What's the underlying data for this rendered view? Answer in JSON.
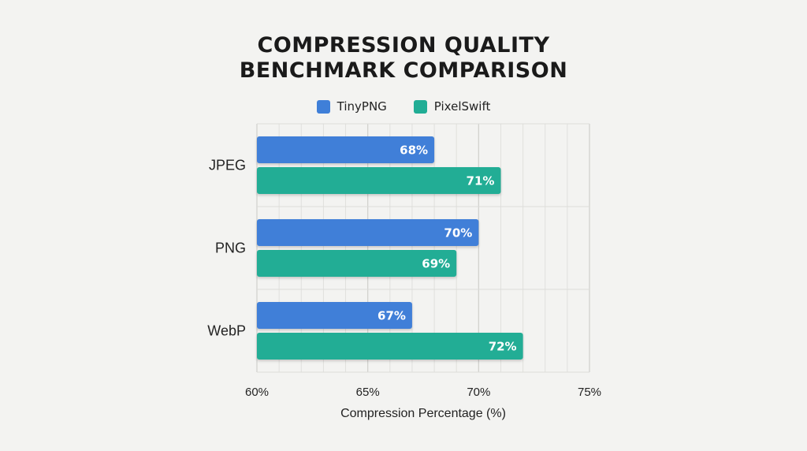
{
  "chart_data": {
    "type": "bar",
    "orientation": "horizontal",
    "title_lines": [
      "COMPRESSION QUALITY",
      "BENCHMARK COMPARISON"
    ],
    "categories": [
      "JPEG",
      "PNG",
      "WebP"
    ],
    "series": [
      {
        "name": "TinyPNG",
        "color": "#3f7fd8",
        "values": [
          68,
          70,
          67
        ],
        "labels": [
          "68%",
          "70%",
          "67%"
        ]
      },
      {
        "name": "PixelSwift",
        "color": "#21ad95",
        "values": [
          71,
          69,
          72
        ],
        "labels": [
          "71%",
          "69%",
          "72%"
        ]
      }
    ],
    "xlabel": "Compression Percentage (%)",
    "xlim": [
      60,
      75
    ],
    "x_ticks": [
      60,
      65,
      70,
      75
    ],
    "x_tick_labels": [
      "60%",
      "65%",
      "70%",
      "75%"
    ],
    "grid": true,
    "legend_position": "top-center"
  }
}
